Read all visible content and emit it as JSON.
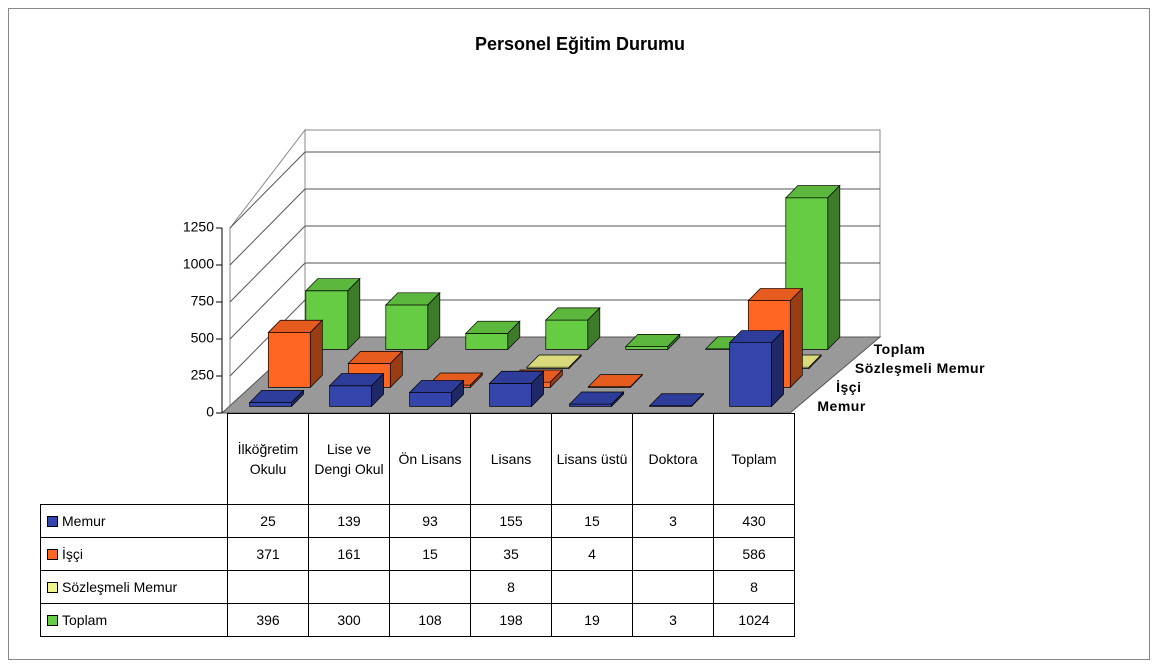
{
  "chart_data": {
    "type": "bar3d",
    "title": "Personel Eğitim Durumu",
    "categories": [
      "İlköğretim Okulu",
      "Lise ve Dengi Okul",
      "Ön Lisans",
      "Lisans",
      "Lisans üstü",
      "Doktora",
      "Toplam"
    ],
    "series": [
      {
        "name": "Memur",
        "color": "#3344aa",
        "values": [
          25,
          139,
          93,
          155,
          15,
          3,
          430
        ]
      },
      {
        "name": "İşçi",
        "color": "#ff6622",
        "values": [
          371,
          161,
          15,
          35,
          4,
          null,
          586
        ]
      },
      {
        "name": "Sözleşmeli Memur",
        "color": "#f2f28a",
        "values": [
          null,
          null,
          null,
          8,
          null,
          null,
          8
        ]
      },
      {
        "name": "Toplam",
        "color": "#66cc44",
        "values": [
          396,
          300,
          108,
          198,
          19,
          3,
          1024
        ]
      }
    ],
    "ylim": [
      0,
      1250
    ],
    "yticks": [
      0,
      250,
      500,
      750,
      1000,
      1250
    ],
    "grid": true
  }
}
